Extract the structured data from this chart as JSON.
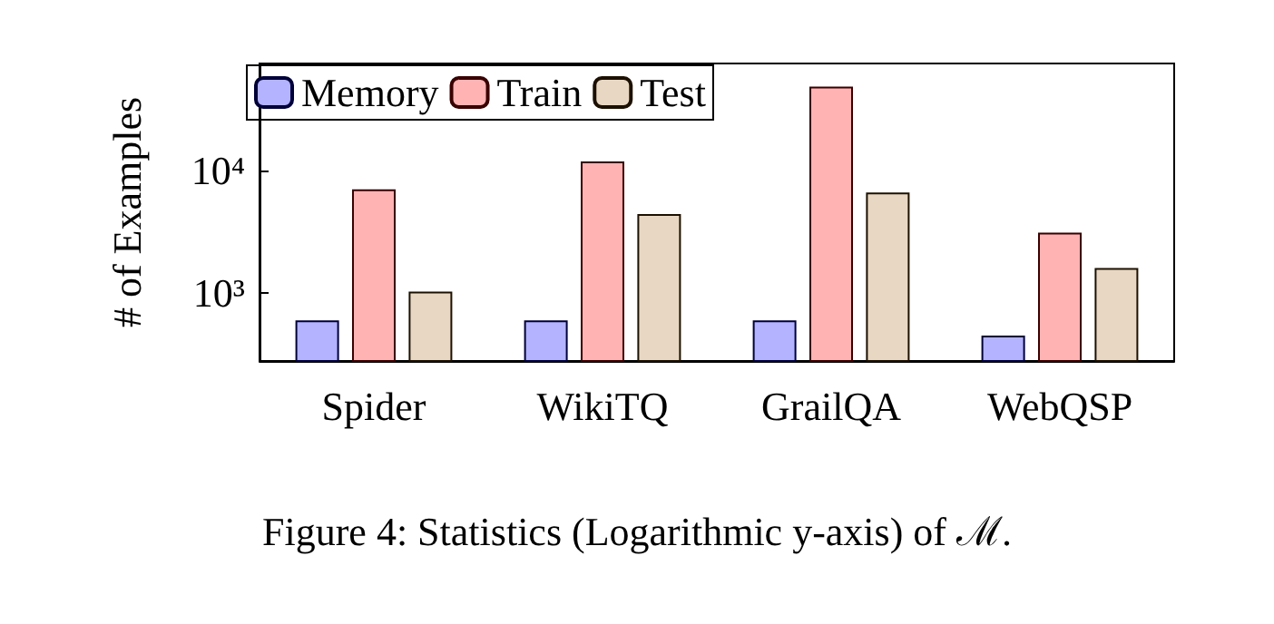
{
  "chart_data": {
    "type": "bar",
    "ylabel": "# of Examples",
    "categories": [
      "Spider",
      "WikiTQ",
      "GrailQA",
      "WebQSP"
    ],
    "series": [
      {
        "name": "Memory",
        "color": "#b3b3ff",
        "values": [
          600,
          600,
          600,
          450
        ]
      },
      {
        "name": "Train",
        "color": "#ffb3b3",
        "values": [
          7000,
          11800,
          48000,
          3100
        ]
      },
      {
        "name": "Test",
        "color": "#e8d8c3",
        "values": [
          1030,
          4400,
          6600,
          1600
        ]
      }
    ],
    "log": "y",
    "ylim": [
      280,
      74000
    ],
    "yticks": [
      {
        "value": 1000,
        "label": "10³"
      },
      {
        "value": 10000,
        "label": "10⁴"
      }
    ],
    "grid": false,
    "legend": "top left",
    "annotations": [
      "Figure 4: Statistics (Logarithmic y-axis) of ℳ."
    ]
  }
}
